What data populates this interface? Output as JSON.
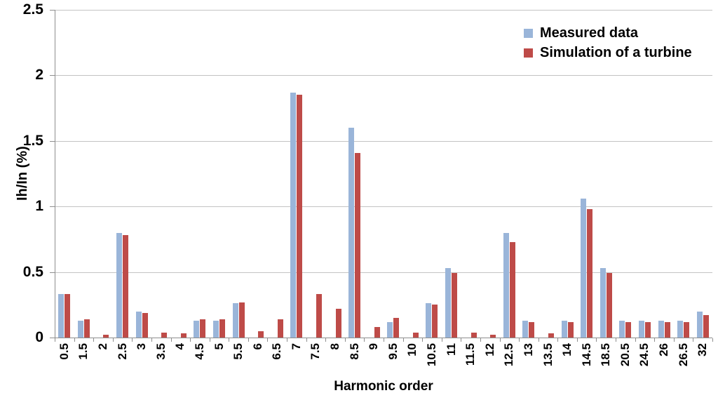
{
  "chart_data": {
    "type": "bar",
    "title": "",
    "xlabel": "Harmonic order",
    "ylabel": "Ih/In (%)",
    "ylim": [
      0,
      2.5
    ],
    "yticks": [
      "0",
      "0.5",
      "1",
      "1.5",
      "2",
      "2.5"
    ],
    "grid": "horizontal",
    "legend_position": "top-right",
    "categories": [
      "0.5",
      "1.5",
      "2",
      "2.5",
      "3",
      "3.5",
      "4",
      "4.5",
      "5",
      "5.5",
      "6",
      "6.5",
      "7",
      "7.5",
      "8",
      "8.5",
      "9",
      "9.5",
      "10",
      "10.5",
      "11",
      "11.5",
      "12",
      "12.5",
      "13",
      "13.5",
      "14",
      "14.5",
      "18.5",
      "20.5",
      "24.5",
      "26",
      "26.5",
      "32"
    ],
    "series": [
      {
        "name": "Measured data",
        "color": "#9AB5D9",
        "values": [
          0.33,
          0.13,
          0,
          0.8,
          0.2,
          0,
          0,
          0.13,
          0.13,
          0.26,
          0,
          0,
          1.87,
          0,
          0,
          1.6,
          0,
          0.12,
          0,
          0.26,
          0.53,
          0,
          0,
          0.8,
          0.13,
          0,
          0.13,
          1.06,
          0.53,
          0.13,
          0.13,
          0.13,
          0.13,
          0.2
        ]
      },
      {
        "name": "Simulation of a turbine",
        "color": "#BE4B48",
        "values": [
          0.33,
          0.14,
          0.02,
          0.78,
          0.19,
          0.04,
          0.03,
          0.14,
          0.14,
          0.27,
          0.05,
          0.14,
          1.85,
          0.33,
          0.22,
          1.41,
          0.08,
          0.15,
          0.04,
          0.25,
          0.49,
          0.04,
          0.02,
          0.73,
          0.12,
          0.03,
          0.12,
          0.98,
          0.49,
          0.12,
          0.12,
          0.12,
          0.12,
          0.17
        ]
      }
    ],
    "colors": {
      "gridline": "#C3C3C3",
      "axis": "#8E8E8E",
      "text": "#000000",
      "background": "#FFFFFF"
    }
  }
}
